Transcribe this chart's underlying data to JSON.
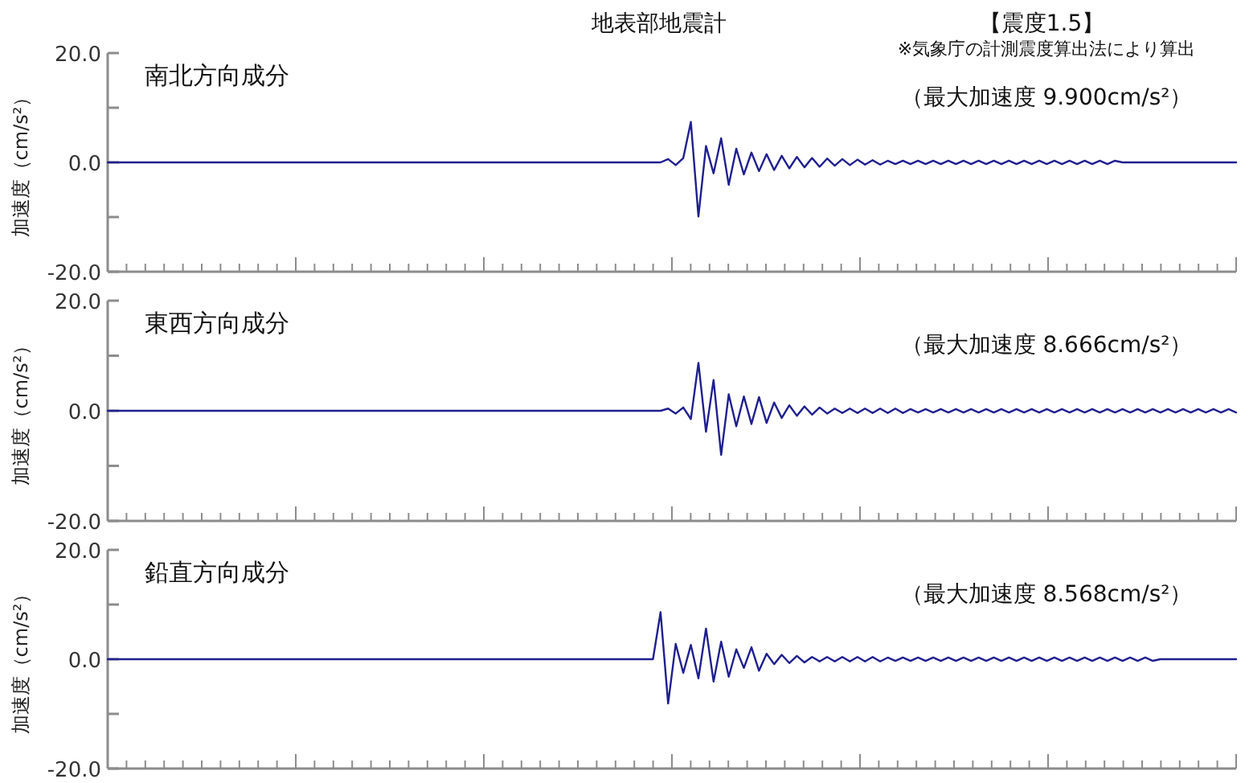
{
  "chart_data": [
    {
      "type": "line",
      "title": "南北方向成分",
      "ylabel": "加速度（cm/s²）",
      "annotations": [
        "地表部地震計",
        "【震度1.5】",
        "※気象庁の計測震度算出法により算出",
        "（最大加速度 9.900cm/s²）"
      ],
      "categories": [
        null,
        null,
        null,
        null,
        null,
        null,
        null,
        null,
        null,
        null,
        null,
        null,
        null,
        null,
        null,
        null,
        null,
        null,
        null,
        null,
        null,
        null,
        null,
        null,
        null,
        null,
        null,
        null,
        null,
        null,
        null,
        null,
        null,
        null,
        null,
        null,
        null,
        null,
        null,
        null,
        null,
        null,
        null,
        null,
        null,
        null,
        null,
        null,
        null,
        null,
        null,
        null,
        null,
        null,
        null,
        null,
        null,
        null,
        null,
        null,
        null,
        null,
        null,
        null,
        null,
        null,
        null,
        null,
        null,
        null,
        null,
        null,
        null,
        null,
        null,
        null,
        null,
        null,
        null,
        null,
        null,
        null,
        null,
        null,
        null,
        null,
        null,
        null,
        null,
        null,
        null,
        null,
        null,
        null,
        null,
        null,
        null,
        null,
        null,
        null,
        null,
        null,
        null,
        null,
        null,
        null,
        null,
        null,
        null,
        null,
        null,
        null,
        null,
        null,
        null,
        null,
        null,
        null,
        null,
        null,
        null,
        null,
        null,
        null,
        null,
        null,
        null,
        null,
        null,
        null,
        null,
        null,
        null,
        null,
        null,
        null,
        null,
        null,
        null,
        null,
        null,
        null,
        null,
        null,
        null,
        null,
        null,
        null,
        null,
        null
      ],
      "color": "#1f1f8f",
      "values": [
        0,
        0,
        0,
        0,
        0,
        0,
        0,
        0,
        0,
        0,
        0,
        0,
        0,
        0,
        0,
        0,
        0,
        0,
        0,
        0,
        0,
        0,
        0,
        0,
        0,
        0,
        0,
        0,
        0,
        0,
        0,
        0,
        0,
        0,
        0,
        0,
        0,
        0,
        0,
        0,
        0,
        0,
        0,
        0,
        0,
        0,
        0,
        0,
        0,
        0,
        0,
        0,
        0,
        0,
        0,
        0,
        0,
        0,
        0,
        0,
        0,
        0,
        0,
        0,
        0,
        0,
        0,
        0,
        0,
        0,
        0,
        0,
        0,
        0,
        0.6,
        -0.5,
        0.8,
        7.4,
        -9.9,
        3.0,
        -2.0,
        4.4,
        -4.1,
        2.5,
        -2.2,
        1.8,
        -1.6,
        1.5,
        -1.4,
        1.2,
        -1.1,
        1.0,
        -0.9,
        0.8,
        -0.8,
        0.7,
        -0.6,
        0.6,
        -0.5,
        0.5,
        -0.4,
        0.4,
        -0.4,
        0.3,
        -0.3,
        0.3,
        -0.3,
        0.3,
        -0.3,
        0.3,
        -0.3,
        0.3,
        -0.3,
        0.3,
        -0.3,
        0.3,
        -0.3,
        0.3,
        -0.3,
        0.3,
        -0.3,
        0.3,
        -0.3,
        0.3,
        -0.3,
        0.3,
        -0.3,
        0.3,
        -0.3,
        0.3,
        -0.3,
        0.3,
        -0.3,
        0.3,
        0,
        0,
        0,
        0,
        0,
        0,
        0,
        0,
        0,
        0,
        0,
        0,
        0,
        0,
        0,
        0
      ],
      "ylim": [
        -20,
        20
      ],
      "yticks": [
        {
          "value": -20,
          "label": "-20.0"
        },
        {
          "value": -10,
          "label": null
        },
        {
          "value": 0,
          "label": "0.0"
        },
        {
          "value": 10,
          "label": null
        },
        {
          "value": 20,
          "label": "20.0"
        }
      ],
      "tick_labels": "y"
    },
    {
      "type": "line",
      "title": "東西方向成分",
      "ylabel": "加速度（cm/s²）",
      "annotations": [
        "（最大加速度 8.666cm/s²）"
      ],
      "categories": [
        null,
        null,
        null,
        null,
        null,
        null,
        null,
        null,
        null,
        null,
        null,
        null,
        null,
        null,
        null,
        null,
        null,
        null,
        null,
        null,
        null,
        null,
        null,
        null,
        null,
        null,
        null,
        null,
        null,
        null,
        null,
        null,
        null,
        null,
        null,
        null,
        null,
        null,
        null,
        null,
        null,
        null,
        null,
        null,
        null,
        null,
        null,
        null,
        null,
        null,
        null,
        null,
        null,
        null,
        null,
        null,
        null,
        null,
        null,
        null,
        null,
        null,
        null,
        null,
        null,
        null,
        null,
        null,
        null,
        null,
        null,
        null,
        null,
        null,
        null,
        null,
        null,
        null,
        null,
        null,
        null,
        null,
        null,
        null,
        null,
        null,
        null,
        null,
        null,
        null,
        null,
        null,
        null,
        null,
        null,
        null,
        null,
        null,
        null,
        null,
        null,
        null,
        null,
        null,
        null,
        null,
        null,
        null,
        null,
        null,
        null,
        null,
        null,
        null,
        null,
        null,
        null,
        null,
        null,
        null,
        null,
        null,
        null,
        null,
        null,
        null,
        null,
        null,
        null,
        null,
        null,
        null,
        null,
        null,
        null,
        null,
        null,
        null,
        null,
        null,
        null,
        null,
        null,
        null,
        null,
        null,
        null,
        null,
        null,
        null
      ],
      "color": "#1f1f8f",
      "values": [
        0,
        0,
        0,
        0,
        0,
        0,
        0,
        0,
        0,
        0,
        0,
        0,
        0,
        0,
        0,
        0,
        0,
        0,
        0,
        0,
        0,
        0,
        0,
        0,
        0,
        0,
        0,
        0,
        0,
        0,
        0,
        0,
        0,
        0,
        0,
        0,
        0,
        0,
        0,
        0,
        0,
        0,
        0,
        0,
        0,
        0,
        0,
        0,
        0,
        0,
        0,
        0,
        0,
        0,
        0,
        0,
        0,
        0,
        0,
        0,
        0,
        0,
        0,
        0,
        0,
        0,
        0,
        0,
        0,
        0,
        0,
        0,
        0,
        0,
        0.4,
        -0.5,
        0.6,
        -1.5,
        8.7,
        -3.8,
        5.6,
        -8.0,
        3.0,
        -2.8,
        2.6,
        -2.4,
        2.5,
        -2.2,
        1.5,
        -1.3,
        1.0,
        -0.9,
        0.8,
        -0.7,
        0.6,
        -0.5,
        0.4,
        -0.4,
        0.4,
        -0.4,
        0.4,
        -0.4,
        0.4,
        -0.4,
        0.4,
        -0.4,
        0.3,
        -0.3,
        0.3,
        -0.3,
        0.3,
        -0.3,
        0.3,
        -0.3,
        0.3,
        -0.3,
        0.3,
        -0.3,
        0.3,
        -0.3,
        0.3,
        -0.3,
        0.3,
        -0.3,
        0.3,
        -0.3,
        0.3,
        -0.3,
        0.3,
        -0.3,
        0.3,
        -0.3,
        0.3,
        -0.3,
        0.3,
        -0.3,
        0.3,
        -0.3,
        0.3,
        -0.3,
        0.3,
        -0.3,
        0.3,
        -0.3,
        0.3,
        -0.3,
        0.3,
        -0.3,
        0.3,
        -0.3
      ],
      "ylim": [
        -20,
        20
      ],
      "yticks": [
        {
          "value": -20,
          "label": "-20.0"
        },
        {
          "value": -10,
          "label": null
        },
        {
          "value": 0,
          "label": "0.0"
        },
        {
          "value": 10,
          "label": null
        },
        {
          "value": 20,
          "label": "20.0"
        }
      ],
      "tick_labels": "y"
    },
    {
      "type": "line",
      "title": "鉛直方向成分",
      "ylabel": "加速度（cm/s²）",
      "annotations": [
        "（最大加速度 8.568cm/s²）"
      ],
      "categories": [
        null,
        null,
        null,
        null,
        null,
        null,
        null,
        null,
        null,
        null,
        null,
        null,
        null,
        null,
        null,
        null,
        null,
        null,
        null,
        null,
        null,
        null,
        null,
        null,
        null,
        null,
        null,
        null,
        null,
        null,
        null,
        null,
        null,
        null,
        null,
        null,
        null,
        null,
        null,
        null,
        null,
        null,
        null,
        null,
        null,
        null,
        null,
        null,
        null,
        null,
        null,
        null,
        null,
        null,
        null,
        null,
        null,
        null,
        null,
        null,
        null,
        null,
        null,
        null,
        null,
        null,
        null,
        null,
        null,
        null,
        null,
        null,
        null,
        null,
        null,
        null,
        null,
        null,
        null,
        null,
        null,
        null,
        null,
        null,
        null,
        null,
        null,
        null,
        null,
        null,
        null,
        null,
        null,
        null,
        null,
        null,
        null,
        null,
        null,
        null,
        null,
        null,
        null,
        null,
        null,
        null,
        null,
        null,
        null,
        null,
        null,
        null,
        null,
        null,
        null,
        null,
        null,
        null,
        null,
        null,
        null,
        null,
        null,
        null,
        null,
        null,
        null,
        null,
        null,
        null,
        null,
        null,
        null,
        null,
        null,
        null,
        null,
        null,
        null,
        null,
        null,
        null,
        null,
        null,
        null,
        null,
        null,
        null,
        null,
        null
      ],
      "color": "#1f1f8f",
      "values": [
        0,
        0,
        0,
        0,
        0,
        0,
        0,
        0,
        0,
        0,
        0,
        0,
        0,
        0,
        0,
        0,
        0,
        0,
        0,
        0,
        0,
        0,
        0,
        0,
        0,
        0,
        0,
        0,
        0,
        0,
        0,
        0,
        0,
        0,
        0,
        0,
        0,
        0,
        0,
        0,
        0,
        0,
        0,
        0,
        0,
        0,
        0,
        0,
        0,
        0,
        0,
        0,
        0,
        0,
        0,
        0,
        0,
        0,
        0,
        0,
        0,
        0,
        0,
        0,
        0,
        0,
        0,
        0,
        0,
        0,
        0,
        0,
        0,
        8.6,
        -8.1,
        2.8,
        -2.5,
        2.6,
        -3.5,
        5.6,
        -4.1,
        3.2,
        -3.2,
        1.8,
        -1.6,
        2.2,
        -2.1,
        1.0,
        -0.9,
        0.8,
        -0.7,
        0.6,
        -0.6,
        0.4,
        -0.4,
        0.4,
        -0.4,
        0.4,
        -0.4,
        0.4,
        -0.4,
        0.4,
        -0.4,
        0.3,
        -0.3,
        0.3,
        -0.3,
        0.3,
        -0.3,
        0.3,
        -0.3,
        0.3,
        -0.3,
        0.3,
        -0.3,
        0.3,
        -0.3,
        0.3,
        -0.3,
        0.3,
        -0.3,
        0.3,
        -0.3,
        0.3,
        -0.3,
        0.3,
        -0.3,
        0.3,
        -0.3,
        0.3,
        -0.3,
        0.3,
        -0.3,
        0.3,
        -0.3,
        0.3,
        -0.3,
        0.3,
        -0.3,
        0,
        0,
        0,
        0,
        0,
        0,
        0,
        0,
        0,
        0,
        0
      ],
      "ylim": [
        -20,
        20
      ],
      "yticks": [
        {
          "value": -20,
          "label": "-20.0"
        },
        {
          "value": -10,
          "label": null
        },
        {
          "value": 0,
          "label": "0.0"
        },
        {
          "value": 10,
          "label": null
        },
        {
          "value": 20,
          "label": "20.0"
        }
      ],
      "tick_labels": "y"
    }
  ]
}
